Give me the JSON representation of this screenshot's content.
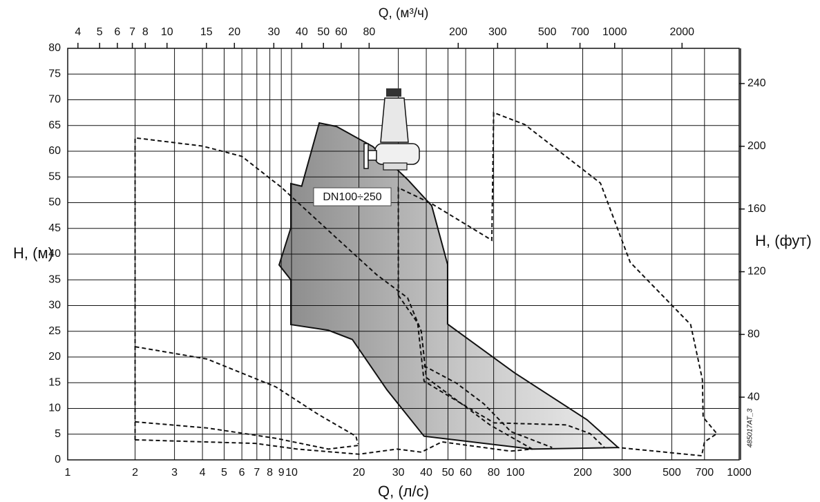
{
  "chart_data": {
    "type": "area-line",
    "xlabel": "Q, (л/с)",
    "x2label": "Q, (м³/ч)",
    "ylabel": "H, (м)",
    "y2label": "H, (фут)",
    "xscale": "log",
    "grid": true,
    "xlim": [
      1,
      1000
    ],
    "xticks": [
      1,
      2,
      3,
      4,
      5,
      6,
      7,
      8,
      9,
      10,
      20,
      30,
      40,
      50,
      60,
      80,
      100,
      200,
      300,
      500,
      700,
      1000
    ],
    "x2lim": [
      3.6,
      3600
    ],
    "x2ticks": [
      4,
      5,
      6,
      7,
      8,
      10,
      15,
      20,
      30,
      40,
      50,
      60,
      80,
      200,
      300,
      500,
      700,
      1000,
      2000
    ],
    "ylim": [
      0,
      80
    ],
    "yticks": [
      0,
      5,
      10,
      15,
      20,
      25,
      30,
      35,
      40,
      45,
      50,
      55,
      60,
      65,
      70,
      75,
      80
    ],
    "y2lim": [
      0,
      262.47
    ],
    "y2ticks": [
      40,
      80,
      120,
      160,
      200,
      240
    ],
    "annotations": [
      "DN100÷250",
      "485017AT_3"
    ],
    "areas": [
      {
        "color": "#b9b9b9",
        "x": [
          13.3,
          11.1,
          9.93,
          9.93,
          8.8,
          9.93,
          9.93,
          14.6,
          18.7,
          26.7,
          39.1,
          118.6,
          288,
          209,
          99.3,
          49.8,
          49.8,
          42.3,
          33.0,
          23.1,
          15.9
        ],
        "values": [
          65.5,
          53.2,
          53.7,
          45.1,
          37.9,
          35.0,
          26.3,
          25.2,
          23.4,
          13.6,
          4.6,
          2.1,
          2.4,
          7.8,
          16.9,
          26.4,
          38.0,
          49.4,
          54.5,
          60.9,
          64.8
        ]
      }
    ],
    "series": [
      {
        "color": "#111",
        "style": "dashed",
        "x": [
          2,
          2,
          4,
          6,
          9,
          16,
          24,
          33,
          38,
          40,
          77,
          119
        ],
        "values": [
          3.9,
          62.6,
          61,
          59,
          53,
          43,
          36,
          31.5,
          25,
          16,
          6.8,
          2.1
        ]
      },
      {
        "color": "#111",
        "style": "dashed",
        "x": [
          30,
          30,
          42.3,
          78.5,
          80,
          110,
          240,
          326,
          607,
          685,
          690,
          795,
          700,
          680,
          288
        ],
        "values": [
          32,
          52.9,
          49.8,
          42.7,
          67.5,
          65.2,
          53.8,
          38.4,
          26.3,
          15.6,
          8.3,
          5.1,
          3.5,
          0.8,
          2.4
        ]
      },
      {
        "color": "#111",
        "style": "dashed",
        "x": [
          30,
          36.6,
          39.1,
          54.6,
          80.3,
          169,
          216,
          250
        ],
        "values": [
          32,
          26.6,
          15.3,
          11.5,
          7.2,
          6.8,
          5.1,
          2.4
        ]
      },
      {
        "color": "#111",
        "style": "dashed",
        "x": [
          39,
          54.6,
          72.3,
          95.5,
          146
        ],
        "values": [
          18.3,
          14.9,
          10.9,
          5.5,
          2.4
        ]
      },
      {
        "color": "#111",
        "style": "dashed",
        "x": [
          2,
          4.2,
          8.5,
          13.1,
          19.4,
          19.8
        ],
        "values": [
          22,
          19.6,
          14.2,
          8.9,
          4.6,
          3.1
        ]
      },
      {
        "color": "#111",
        "style": "dashed",
        "x": [
          2,
          4.2,
          8.5,
          14.6,
          19.8
        ],
        "values": [
          7.4,
          6.2,
          4.2,
          2.1,
          2.8
        ]
      },
      {
        "color": "#111",
        "style": "dashed",
        "x": [
          2,
          6.9,
          10.6,
          20,
          29.6,
          38,
          47,
          95,
          119
        ],
        "values": [
          3.9,
          3.2,
          2.1,
          1.1,
          2.1,
          1.5,
          3.5,
          1.7,
          2.1
        ]
      }
    ]
  }
}
